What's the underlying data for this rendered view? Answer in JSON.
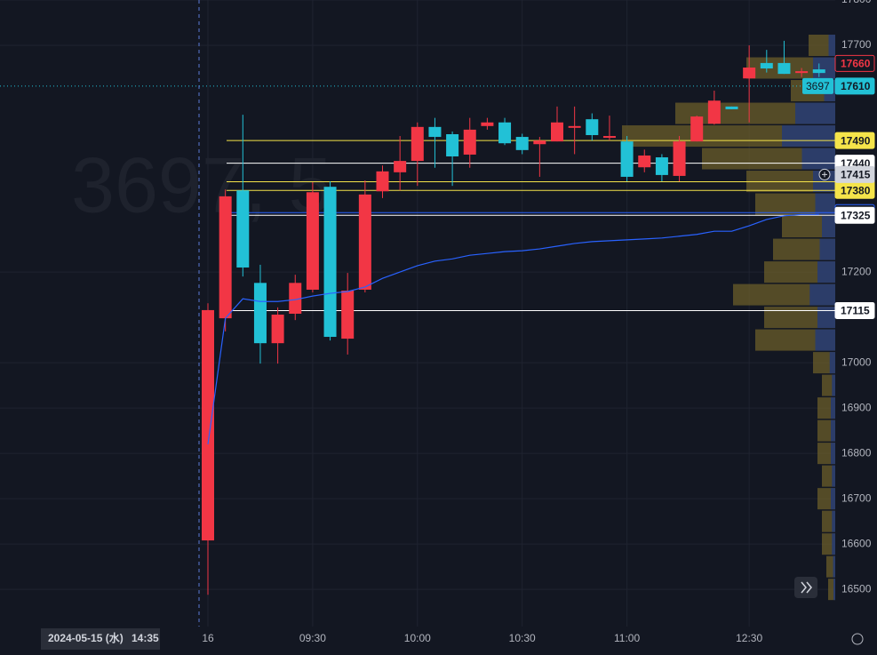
{
  "chart_data": {
    "type": "candlestick",
    "watermark": "3697, 5",
    "crosshair_date": "2024-05-15 (水)",
    "crosshair_time": "14:35",
    "crosshair_price": 17415,
    "ylim": [
      16418,
      17800
    ],
    "yticks": [
      17800,
      17700,
      17200,
      17000,
      16900,
      16800,
      16700,
      16600,
      16500
    ],
    "xticks": [
      {
        "value": 0,
        "label": "16"
      },
      {
        "value": 6,
        "label": "09:30"
      },
      {
        "value": 12,
        "label": "10:00"
      },
      {
        "value": 18,
        "label": "10:30"
      },
      {
        "value": 24,
        "label": "11:00"
      },
      {
        "value": 31,
        "label": "12:30"
      }
    ],
    "up_color": "#f23645",
    "down_color": "#22c1d6",
    "open": [
      16608,
      17098,
      17380,
      17176,
      17043,
      17108,
      17161,
      17388,
      17053,
      17161,
      17378,
      17420,
      17445,
      17520,
      17504,
      17459,
      17522,
      17530,
      17498,
      17482,
      17488,
      17520,
      17537,
      17496,
      17488,
      17431,
      17453,
      17412,
      17488,
      17527,
      17565,
      17627,
      17661,
      17661,
      17639,
      17647
    ],
    "high": [
      17131,
      17382,
      17547,
      17216,
      17122,
      17194,
      17398,
      17400,
      17198,
      17402,
      17435,
      17500,
      17530,
      17540,
      17510,
      17540,
      17540,
      17540,
      17505,
      17498,
      17565,
      17565,
      17550,
      17545,
      17500,
      17470,
      17460,
      17500,
      17545,
      17600,
      17565,
      17700,
      17690,
      17710,
      17650,
      17660
    ],
    "low": [
      16488,
      17069,
      17190,
      16998,
      16998,
      17094,
      17155,
      17049,
      17018,
      17155,
      17363,
      17380,
      17390,
      17430,
      17390,
      17430,
      17514,
      17480,
      17460,
      17410,
      17488,
      17460,
      17490,
      17490,
      17400,
      17420,
      17400,
      17400,
      17488,
      17525,
      17559,
      17530,
      17640,
      17637,
      17630,
      17630
    ],
    "close": [
      17116,
      17367,
      17210,
      17043,
      17106,
      17176,
      17376,
      17057,
      17159,
      17371,
      17422,
      17445,
      17520,
      17498,
      17455,
      17514,
      17530,
      17484,
      17469,
      17490,
      17530,
      17522,
      17502,
      17500,
      17410,
      17457,
      17414,
      17488,
      17543,
      17578,
      17559,
      17651,
      17649,
      17637,
      17643,
      17639
    ],
    "vwap": {
      "color": "#2962ff",
      "values": [
        16820,
        17098,
        17141,
        17135,
        17135,
        17139,
        17147,
        17153,
        17157,
        17167,
        17186,
        17200,
        17214,
        17224,
        17229,
        17237,
        17241,
        17245,
        17247,
        17251,
        17257,
        17263,
        17267,
        17269,
        17271,
        17273,
        17275,
        17279,
        17283,
        17290,
        17290,
        17302,
        17316,
        17324,
        17327,
        17327
      ]
    },
    "price_lines": [
      {
        "value": 17440,
        "color": "#ffffff"
      },
      {
        "value": 17399,
        "color": "#f5e44a"
      },
      {
        "value": 17490,
        "color": "#f5e44a"
      },
      {
        "value": 17380,
        "color": "#f5e44a"
      },
      {
        "value": 17331,
        "color": "#2962ff"
      },
      {
        "value": 17325,
        "color": "#ffffff"
      },
      {
        "value": 17115,
        "color": "#ffffff"
      }
    ],
    "last_price": {
      "value": 17610,
      "volume": 3697,
      "color": "#22c1d6"
    },
    "high_marker": {
      "value": 17660,
      "color": "#f23645"
    },
    "volume_profile": {
      "color": "#6b5d2a",
      "value_area_color": "#223a7a",
      "prices": [
        17700,
        17650,
        17600,
        17550,
        17500,
        17450,
        17400,
        17350,
        17300,
        17250,
        17200,
        17150,
        17100,
        17050,
        17000,
        16950,
        16900,
        16850,
        16800,
        16750,
        16700,
        16650,
        16600,
        16550,
        16500
      ],
      "volumes": [
        30,
        100,
        50,
        180,
        240,
        150,
        100,
        90,
        60,
        70,
        80,
        115,
        80,
        90,
        25,
        15,
        20,
        20,
        20,
        15,
        20,
        15,
        15,
        10,
        8
      ]
    }
  }
}
